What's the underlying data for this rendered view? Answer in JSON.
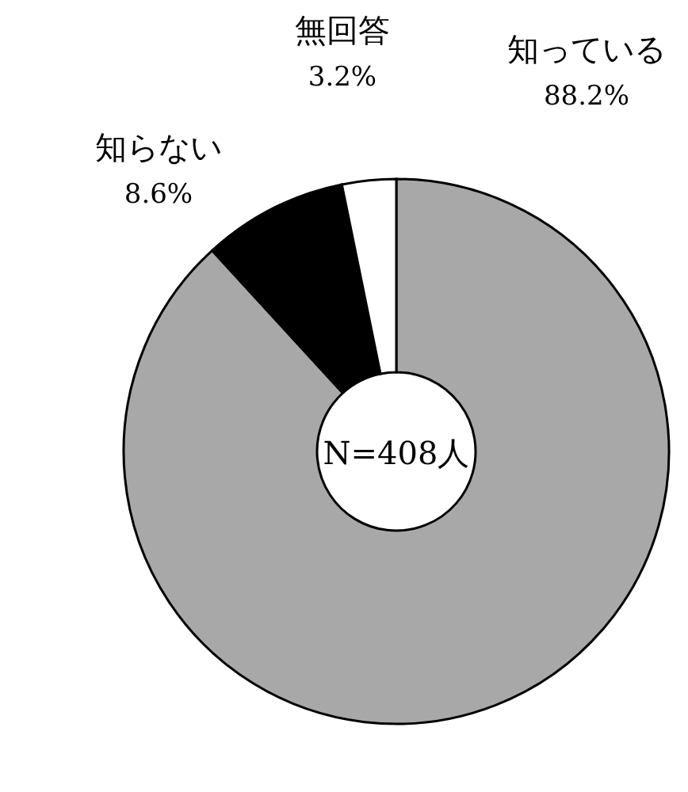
{
  "chart_data": {
    "type": "donut",
    "categories": [
      "知っている",
      "知らない",
      "無回答"
    ],
    "values": [
      88.2,
      8.6,
      3.2
    ],
    "value_labels": [
      "88.2%",
      "8.6%",
      "3.2%"
    ],
    "colors": [
      "#a8a8a8",
      "#000000",
      "#ffffff"
    ],
    "annotations": [
      "N=408人"
    ]
  }
}
